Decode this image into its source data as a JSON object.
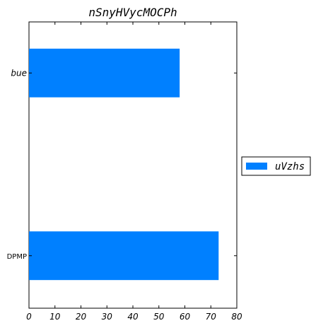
{
  "chart_data": {
    "type": "bar",
    "orientation": "horizontal",
    "title": "nSnyHVycMOCPh",
    "categories": [
      "bue",
      "DPMP"
    ],
    "series": [
      {
        "name": "uVzhs",
        "values": [
          58,
          73
        ],
        "color": "#0080ff"
      }
    ],
    "xlim": [
      0,
      80
    ],
    "xticks": [
      0,
      10,
      20,
      30,
      40,
      50,
      60,
      70,
      80
    ],
    "xlabel": "",
    "ylabel": "",
    "grid": false,
    "legend_position": "center-right"
  }
}
